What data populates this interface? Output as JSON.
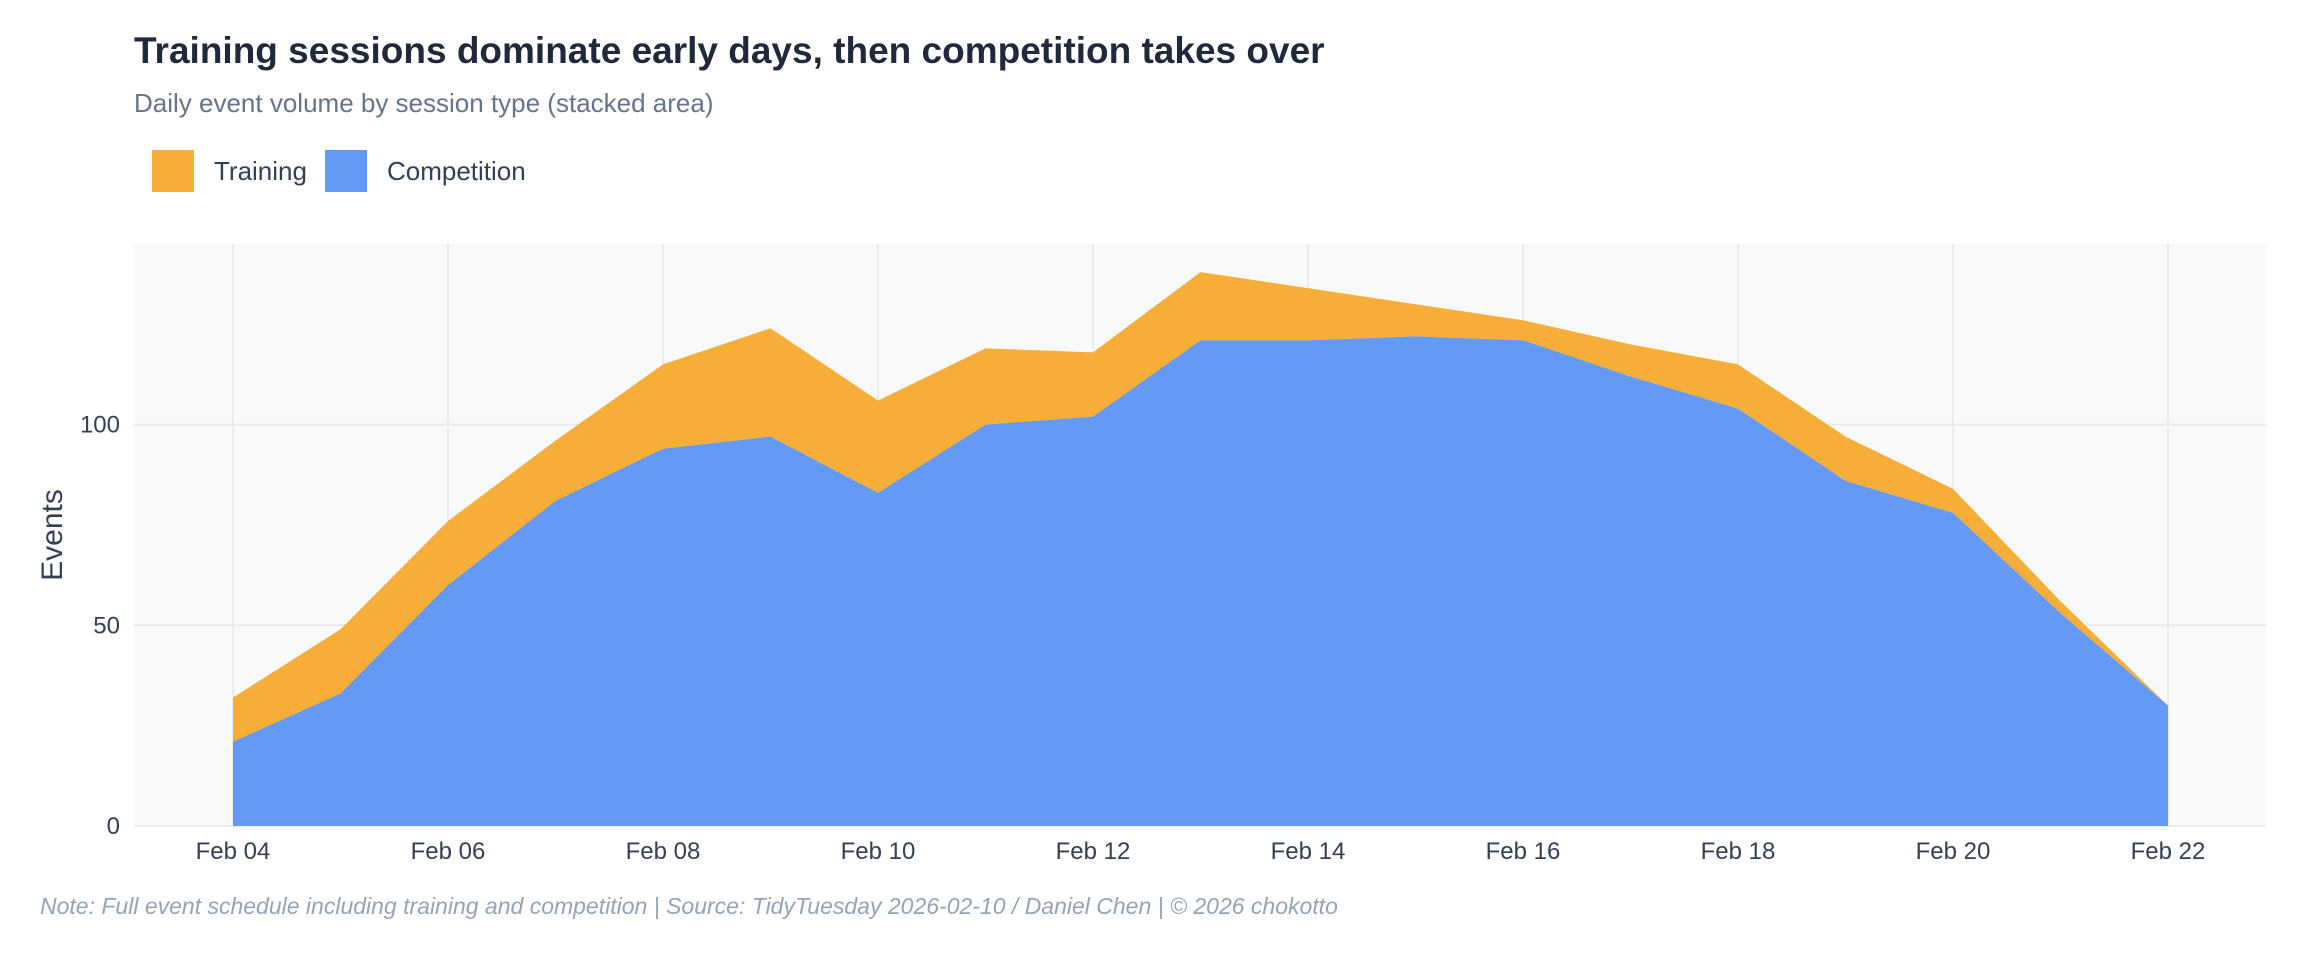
{
  "title": "Training sessions dominate early days, then competition takes over",
  "subtitle": "Daily event volume by session type (stacked area)",
  "footer": "Note: Full event schedule including training and competition  |  Source: TidyTuesday 2026-02-10 / Daniel Chen  |  © 2026 chokotto",
  "colors": {
    "training": "#f6ae38",
    "competition": "#6499f5",
    "plot_bg": "#f8f9fa",
    "grid": "#e5e7eb"
  },
  "chart_data": {
    "type": "area",
    "stacked": true,
    "x": [
      "Feb 04",
      "Feb 05",
      "Feb 06",
      "Feb 07",
      "Feb 08",
      "Feb 09",
      "Feb 10",
      "Feb 11",
      "Feb 12",
      "Feb 13",
      "Feb 14",
      "Feb 15",
      "Feb 16",
      "Feb 17",
      "Feb 18",
      "Feb 19",
      "Feb 20",
      "Feb 21",
      "Feb 22"
    ],
    "x_tick_labels": [
      "Feb 04",
      "Feb 06",
      "Feb 08",
      "Feb 10",
      "Feb 12",
      "Feb 14",
      "Feb 16",
      "Feb 18",
      "Feb 20",
      "Feb 22"
    ],
    "series": [
      {
        "name": "Competition",
        "values": [
          21,
          33,
          60,
          81,
          94,
          97,
          83,
          100,
          102,
          121,
          121,
          122,
          121,
          112,
          104,
          86,
          78,
          53,
          30
        ]
      },
      {
        "name": "Training",
        "values": [
          11,
          16,
          16,
          15,
          21,
          27,
          23,
          19,
          16,
          17,
          13,
          8,
          5,
          8,
          11,
          11,
          6,
          3,
          0
        ]
      }
    ],
    "legend": [
      "Training",
      "Competition"
    ],
    "legend_position": "top-left",
    "xlabel": "",
    "ylabel": "Events",
    "ylim": [
      0,
      145
    ],
    "y_ticks": [
      0,
      50,
      100
    ],
    "grid": true
  }
}
